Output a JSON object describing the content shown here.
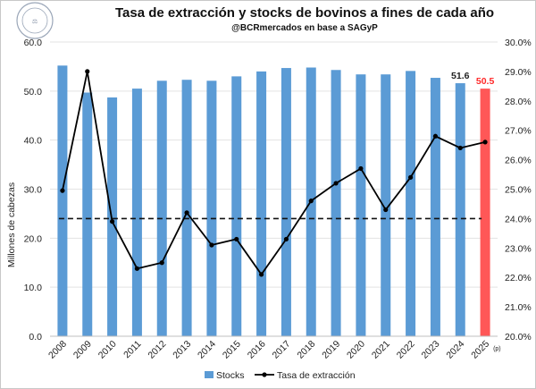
{
  "chart_data": {
    "type": "bar+line",
    "title": "Tasa de extracción y stocks de bovinos a fines de cada año",
    "subtitle": "@BCRmercados en base a SAGyP",
    "ylabel": "Millones de cabezas",
    "ylim": [
      0,
      60
    ],
    "y_ticks": [
      "0.0",
      "10.0",
      "20.0",
      "30.0",
      "40.0",
      "50.0",
      "60.0"
    ],
    "y2lim": [
      20,
      30
    ],
    "y2_ticks": [
      "20.0%",
      "21.0%",
      "22.0%",
      "23.0%",
      "24.0%",
      "25.0%",
      "26.0%",
      "27.0%",
      "28.0%",
      "29.0%",
      "30.0%"
    ],
    "categories": [
      "2008",
      "2009",
      "2010",
      "2011",
      "2012",
      "2013",
      "2014",
      "2015",
      "2016",
      "2017",
      "2018",
      "2019",
      "2020",
      "2021",
      "2022",
      "2023",
      "2024",
      "2025"
    ],
    "projection_marker": "(p)",
    "grid": true,
    "series": [
      {
        "name": "Stocks",
        "axis": "left",
        "kind": "bar",
        "color": "#5b9bd5",
        "highlight_color": "#ff5757",
        "values": [
          55.2,
          49.7,
          48.7,
          50.5,
          52.1,
          52.3,
          52.1,
          53.0,
          54.0,
          54.7,
          54.8,
          54.3,
          53.4,
          53.4,
          54.1,
          52.7,
          51.6,
          50.5
        ],
        "data_labels": {
          "2024": "51.6",
          "2025": "50.5"
        }
      },
      {
        "name": "Tasa de extracción",
        "axis": "right",
        "kind": "line",
        "color": "#000000",
        "values": [
          24.95,
          29.0,
          23.9,
          22.3,
          22.5,
          24.2,
          23.1,
          23.3,
          22.1,
          23.3,
          24.6,
          25.2,
          25.7,
          24.3,
          25.4,
          26.8,
          26.4,
          26.6
        ]
      }
    ],
    "reference_line": {
      "axis": "right",
      "value": 24.0,
      "style": "dashed"
    },
    "legend": {
      "placement": "bottom",
      "entries": [
        "Stocks",
        "Tasa de extracción"
      ]
    }
  },
  "logo_text": "BOLSA DE COMERCIO DE ROSARIO"
}
